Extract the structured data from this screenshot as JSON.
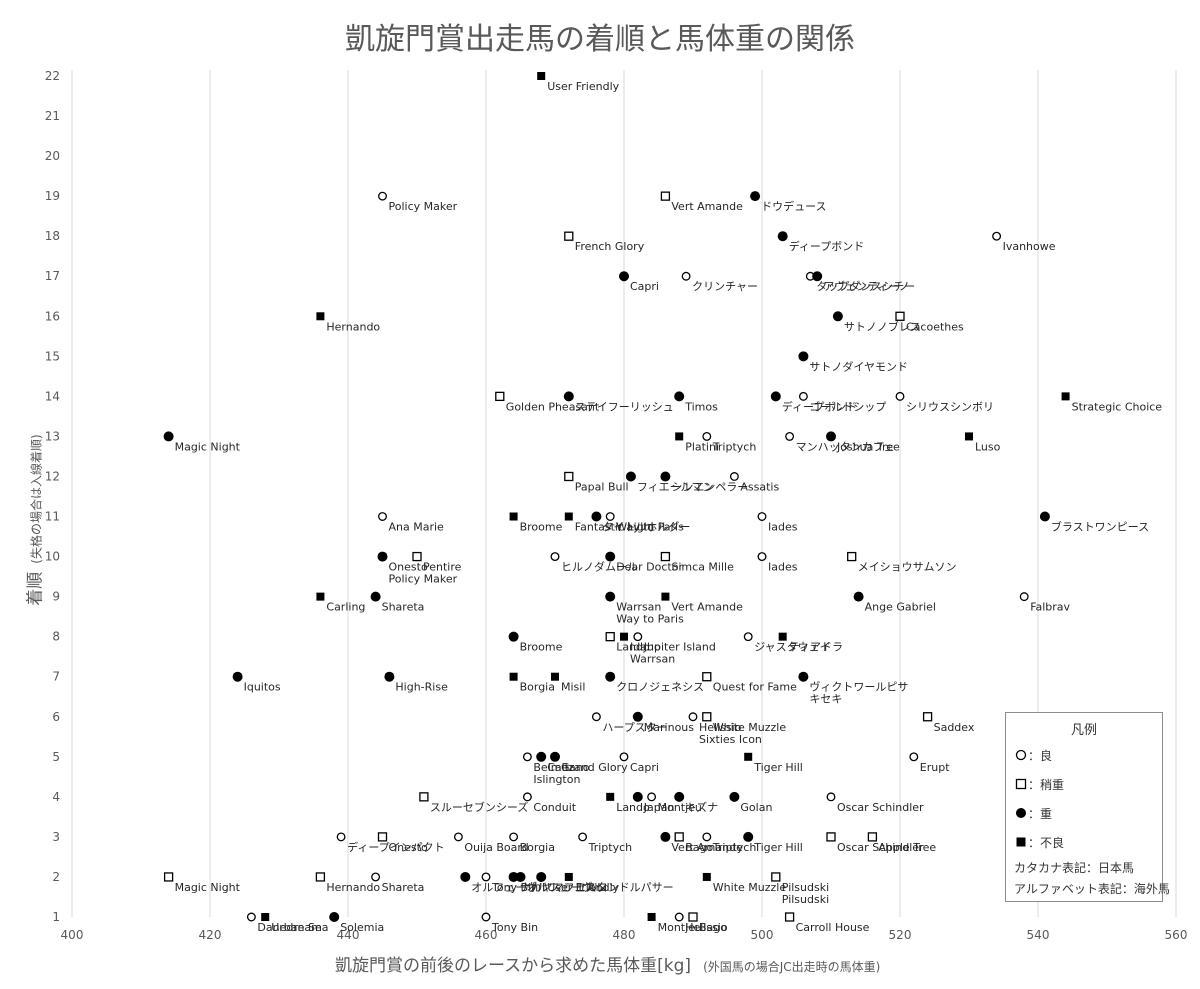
{
  "chart_data": {
    "type": "scatter",
    "title": "凱旋門賞出走馬の着順と馬体重の関係",
    "xlabel": "凱旋門賞の前後のレースから求めた馬体重[kg]",
    "xlabel_note": "(外国馬の場合JC出走時の馬体重)",
    "ylabel": "着順",
    "ylabel_note": "(失格の場合は入線着順)",
    "xlim": [
      400,
      560
    ],
    "ylim": [
      1,
      22
    ],
    "x_ticks": [
      400,
      420,
      440,
      460,
      480,
      500,
      520,
      540,
      560
    ],
    "y_ticks": [
      1,
      2,
      3,
      4,
      5,
      6,
      7,
      8,
      9,
      10,
      11,
      12,
      13,
      14,
      15,
      16,
      17,
      18,
      19,
      20,
      21,
      22
    ],
    "grid": "vertical",
    "legend_position": "bottom-right",
    "marker_types": {
      "ryo": {
        "shape": "open-circle",
        "meaning": "良"
      },
      "yayaomo": {
        "shape": "open-square",
        "meaning": "稍重"
      },
      "omo": {
        "shape": "filled-circle",
        "meaning": "重"
      },
      "furyo": {
        "shape": "filled-square",
        "meaning": "不良"
      }
    },
    "points": [
      {
        "x": 468,
        "y": 22,
        "m": "furyo",
        "label": "User Friendly"
      },
      {
        "x": 445,
        "y": 19,
        "m": "ryo",
        "label": "Policy Maker"
      },
      {
        "x": 486,
        "y": 19,
        "m": "yayaomo",
        "label": "Vert Amande"
      },
      {
        "x": 499,
        "y": 19,
        "m": "omo",
        "label": "ドウデュース"
      },
      {
        "x": 472,
        "y": 18,
        "m": "yayaomo",
        "label": "French Glory"
      },
      {
        "x": 503,
        "y": 18,
        "m": "omo",
        "label": "ディープボンド"
      },
      {
        "x": 534,
        "y": 18,
        "m": "ryo",
        "label": "Ivanhowe"
      },
      {
        "x": 480,
        "y": 17,
        "m": "omo",
        "label": "Capri"
      },
      {
        "x": 489,
        "y": 17,
        "m": "ryo",
        "label": "クリンチャー"
      },
      {
        "x": 507,
        "y": 17,
        "m": "ryo",
        "label": "タップダンスシチー"
      },
      {
        "x": 508,
        "y": 17,
        "m": "omo",
        "label": "アヴェンティーノ"
      },
      {
        "x": 436,
        "y": 16,
        "m": "furyo",
        "label": "Hernando"
      },
      {
        "x": 511,
        "y": 16,
        "m": "omo",
        "label": "サトノノブレス"
      },
      {
        "x": 520,
        "y": 16,
        "m": "yayaomo",
        "label": "Cacoethes"
      },
      {
        "x": 506,
        "y": 15,
        "m": "omo",
        "label": "サトノダイヤモンド"
      },
      {
        "x": 462,
        "y": 14,
        "m": "yayaomo",
        "label": "Golden Pheasant"
      },
      {
        "x": 472,
        "y": 14,
        "m": "omo",
        "label": "ステイフーリッシュ"
      },
      {
        "x": 488,
        "y": 14,
        "m": "omo",
        "label": "Timos"
      },
      {
        "x": 502,
        "y": 14,
        "m": "omo",
        "label": "ディープボンド"
      },
      {
        "x": 506,
        "y": 14,
        "m": "ryo",
        "label": "ゴールドシップ"
      },
      {
        "x": 520,
        "y": 14,
        "m": "ryo",
        "label": "シリウスシンボリ"
      },
      {
        "x": 544,
        "y": 14,
        "m": "furyo",
        "label": "Strategic Choice"
      },
      {
        "x": 414,
        "y": 13,
        "m": "omo",
        "label": "Magic Night"
      },
      {
        "x": 488,
        "y": 13,
        "m": "furyo",
        "label": "Platini"
      },
      {
        "x": 492,
        "y": 13,
        "m": "ryo",
        "label": "Triptych"
      },
      {
        "x": 504,
        "y": 13,
        "m": "ryo",
        "label": "マンハッタンカフェ"
      },
      {
        "x": 510,
        "y": 13,
        "m": "omo",
        "label": "Joshua Tree"
      },
      {
        "x": 530,
        "y": 13,
        "m": "furyo",
        "label": "Luso"
      },
      {
        "x": 472,
        "y": 12,
        "m": "yayaomo",
        "label": "Papal Bull"
      },
      {
        "x": 481,
        "y": 12,
        "m": "omo",
        "label": "フィエールマン"
      },
      {
        "x": 486,
        "y": 12,
        "m": "omo",
        "label": "シンエンペラー"
      },
      {
        "x": 496,
        "y": 12,
        "m": "ryo",
        "label": "Assatis"
      },
      {
        "x": 445,
        "y": 11,
        "m": "ryo",
        "label": "Ana Marie"
      },
      {
        "x": 464,
        "y": 11,
        "m": "furyo",
        "label": "Broome"
      },
      {
        "x": 472,
        "y": 11,
        "m": "furyo",
        "label": "Fantastic Light"
      },
      {
        "x": 476,
        "y": 11,
        "m": "omo",
        "label": "タイトルホルダー"
      },
      {
        "x": 478,
        "y": 11,
        "m": "ryo",
        "label": "Way to Paris"
      },
      {
        "x": 500,
        "y": 11,
        "m": "ryo",
        "label": "Iades"
      },
      {
        "x": 541,
        "y": 11,
        "m": "omo",
        "label": "ブラストワンピース"
      },
      {
        "x": 450,
        "y": 10,
        "m": "yayaomo",
        "label": "Pentire"
      },
      {
        "x": 445,
        "y": 10,
        "m": "omo",
        "label": "Onesto"
      },
      {
        "x": 470,
        "y": 10,
        "m": "ryo",
        "label": "ヒルノダムール"
      },
      {
        "x": 478,
        "y": 10,
        "m": "omo",
        "label": "Dear Doctor"
      },
      {
        "x": 486,
        "y": 10,
        "m": "yayaomo",
        "label": "Simca Mille"
      },
      {
        "x": 500,
        "y": 10,
        "m": "ryo",
        "label": "Iades"
      },
      {
        "x": 513,
        "y": 10,
        "m": "yayaomo",
        "label": "メイショウサムソン"
      },
      {
        "x": 436,
        "y": 9,
        "m": "furyo",
        "label": "Carling"
      },
      {
        "x": 444,
        "y": 9,
        "m": "omo",
        "label": "Shareta"
      },
      {
        "x": 478,
        "y": 9,
        "m": "omo",
        "label": "Warrsan"
      },
      {
        "x": 486,
        "y": 9,
        "m": "furyo",
        "label": "Vert Amande"
      },
      {
        "x": 514,
        "y": 9,
        "m": "omo",
        "label": "Ange Gabriel"
      },
      {
        "x": 538,
        "y": 9,
        "m": "ryo",
        "label": "Falbrav"
      },
      {
        "x": 464,
        "y": 8,
        "m": "omo",
        "label": "Broome"
      },
      {
        "x": 478,
        "y": 8,
        "m": "yayaomo",
        "label": "Lando"
      },
      {
        "x": 480,
        "y": 8,
        "m": "furyo",
        "label": "Idaho"
      },
      {
        "x": 482,
        "y": 8,
        "m": "ryo",
        "label": "Jupiter Island"
      },
      {
        "x": 498,
        "y": 8,
        "m": "ryo",
        "label": "ジャスタウェイ"
      },
      {
        "x": 503,
        "y": 8,
        "m": "furyo",
        "label": "ティアドラ"
      },
      {
        "x": 424,
        "y": 7,
        "m": "omo",
        "label": "Iquitos"
      },
      {
        "x": 446,
        "y": 7,
        "m": "omo",
        "label": "High-Rise"
      },
      {
        "x": 464,
        "y": 7,
        "m": "furyo",
        "label": "Borgia"
      },
      {
        "x": 470,
        "y": 7,
        "m": "furyo",
        "label": "Misil"
      },
      {
        "x": 478,
        "y": 7,
        "m": "omo",
        "label": "クロノジェネシス"
      },
      {
        "x": 492,
        "y": 7,
        "m": "yayaomo",
        "label": "Quest for Fame"
      },
      {
        "x": 506,
        "y": 7,
        "m": "omo",
        "label": "ヴィクトワールピサ"
      },
      {
        "x": 476,
        "y": 6,
        "m": "ryo",
        "label": "ハープスター"
      },
      {
        "x": 482,
        "y": 6,
        "m": "omo",
        "label": "Marinous"
      },
      {
        "x": 490,
        "y": 6,
        "m": "ryo",
        "label": "Helissio"
      },
      {
        "x": 492,
        "y": 6,
        "m": "yayaomo",
        "label": "White Muzzle"
      },
      {
        "x": 524,
        "y": 6,
        "m": "yayaomo",
        "label": "Saddex"
      },
      {
        "x": 466,
        "y": 5,
        "m": "ryo",
        "label": "Belmez"
      },
      {
        "x": 468,
        "y": 5,
        "m": "omo",
        "label": "Caitano"
      },
      {
        "x": 470,
        "y": 5,
        "m": "omo",
        "label": "Grand Glory"
      },
      {
        "x": 480,
        "y": 5,
        "m": "ryo",
        "label": "Capri"
      },
      {
        "x": 498,
        "y": 5,
        "m": "furyo",
        "label": "Tiger Hill"
      },
      {
        "x": 522,
        "y": 5,
        "m": "ryo",
        "label": "Erupt"
      },
      {
        "x": 451,
        "y": 4,
        "m": "yayaomo",
        "label": "スルーセブンシーズ"
      },
      {
        "x": 466,
        "y": 4,
        "m": "ryo",
        "label": "Conduit"
      },
      {
        "x": 478,
        "y": 4,
        "m": "furyo",
        "label": "Lando"
      },
      {
        "x": 482,
        "y": 4,
        "m": "omo",
        "label": "Japan"
      },
      {
        "x": 484,
        "y": 4,
        "m": "ryo",
        "label": "Montjeu"
      },
      {
        "x": 488,
        "y": 4,
        "m": "omo",
        "label": "キズナ"
      },
      {
        "x": 496,
        "y": 4,
        "m": "omo",
        "label": "Golan"
      },
      {
        "x": 510,
        "y": 4,
        "m": "ryo",
        "label": "Oscar Schindler"
      },
      {
        "x": 439,
        "y": 3,
        "m": "ryo",
        "label": "ディープインパクト"
      },
      {
        "x": 445,
        "y": 3,
        "m": "yayaomo",
        "label": "Onesto"
      },
      {
        "x": 456,
        "y": 3,
        "m": "ryo",
        "label": "Ouija Board"
      },
      {
        "x": 464,
        "y": 3,
        "m": "ryo",
        "label": "Borgia"
      },
      {
        "x": 474,
        "y": 3,
        "m": "ryo",
        "label": "Triptych"
      },
      {
        "x": 486,
        "y": 3,
        "m": "omo",
        "label": "Vert Amande"
      },
      {
        "x": 488,
        "y": 3,
        "m": "yayaomo",
        "label": "Bago"
      },
      {
        "x": 492,
        "y": 3,
        "m": "ryo",
        "label": "Triptych"
      },
      {
        "x": 498,
        "y": 3,
        "m": "omo",
        "label": "Tiger Hill"
      },
      {
        "x": 510,
        "y": 3,
        "m": "yayaomo",
        "label": "Oscar Schindler"
      },
      {
        "x": 516,
        "y": 3,
        "m": "yayaomo",
        "label": "Apple Tree"
      },
      {
        "x": 414,
        "y": 2,
        "m": "yayaomo",
        "label": "Magic Night"
      },
      {
        "x": 436,
        "y": 2,
        "m": "yayaomo",
        "label": "Hernando"
      },
      {
        "x": 444,
        "y": 2,
        "m": "ryo",
        "label": "Shareta"
      },
      {
        "x": 457,
        "y": 2,
        "m": "omo",
        "label": "オルフェーヴル"
      },
      {
        "x": 460,
        "y": 2,
        "m": "ryo",
        "label": "Tony Bin"
      },
      {
        "x": 464,
        "y": 2,
        "m": "omo",
        "label": "ナカヤマフェスタ"
      },
      {
        "x": 465,
        "y": 2,
        "m": "omo",
        "label": "オルフェーヴル"
      },
      {
        "x": 468,
        "y": 2,
        "m": "omo",
        "label": "User Friendly"
      },
      {
        "x": 472,
        "y": 2,
        "m": "furyo",
        "label": "エルコンドルパサー"
      },
      {
        "x": 492,
        "y": 2,
        "m": "furyo",
        "label": "White Muzzle"
      },
      {
        "x": 502,
        "y": 2,
        "m": "yayaomo",
        "label": "Pilsudski"
      },
      {
        "x": 426,
        "y": 1,
        "m": "ryo",
        "label": "Danedream"
      },
      {
        "x": 428,
        "y": 1,
        "m": "furyo",
        "label": "Urban Sea"
      },
      {
        "x": 438,
        "y": 1,
        "m": "omo",
        "label": "Solemia"
      },
      {
        "x": 460,
        "y": 1,
        "m": "ryo",
        "label": "Tony Bin"
      },
      {
        "x": 484,
        "y": 1,
        "m": "furyo",
        "label": "Montjeu"
      },
      {
        "x": 488,
        "y": 1,
        "m": "ryo",
        "label": "Helissio"
      },
      {
        "x": 490,
        "y": 1,
        "m": "yayaomo",
        "label": "Bago"
      },
      {
        "x": 504,
        "y": 1,
        "m": "yayaomo",
        "label": "Carroll House"
      }
    ],
    "extra_labels": [
      {
        "x": 445,
        "y": 10,
        "text": "Policy Maker"
      },
      {
        "x": 478,
        "y": 9,
        "text": "Way to Paris"
      },
      {
        "x": 480,
        "y": 8,
        "text": "Warrsan"
      },
      {
        "x": 506,
        "y": 7,
        "text": "キセキ"
      },
      {
        "x": 490,
        "y": 6,
        "text": "Sixties Icon"
      },
      {
        "x": 466,
        "y": 5,
        "text": "Islington"
      },
      {
        "x": 502,
        "y": 2,
        "text": "Pilsudski"
      }
    ]
  },
  "legend": {
    "title": "凡例",
    "items": [
      {
        "marker": "ryo",
        "text": "：良"
      },
      {
        "marker": "yayaomo",
        "text": "：稍重"
      },
      {
        "marker": "omo",
        "text": "：重"
      },
      {
        "marker": "furyo",
        "text": "：不良"
      }
    ],
    "notes": [
      "カタカナ表記：日本馬",
      "アルファベット表記：海外馬"
    ]
  },
  "colors": {
    "marker": "#000000",
    "text": "#262626",
    "axis_text": "#595959",
    "grid": "#d9d9d9"
  }
}
